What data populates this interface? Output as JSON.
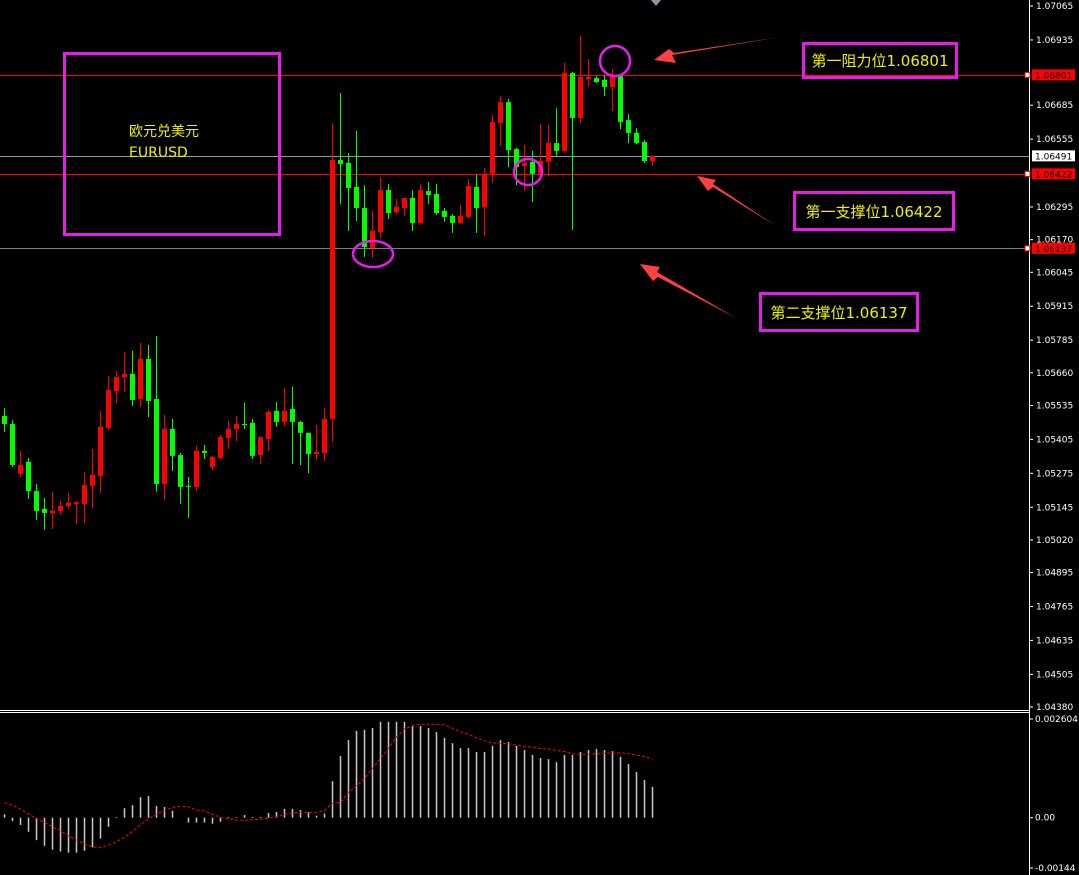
{
  "chart_data": {
    "type": "candlestick",
    "symbol_label": "欧元兑美元",
    "symbol": "EURUSD",
    "price_axis": {
      "range": [
        1.0438,
        1.07065
      ],
      "ticks": [
        "1.07065",
        "1.06935",
        "1.06685",
        "1.06555",
        "1.06295",
        "1.06170",
        "1.06045",
        "1.05915",
        "1.05785",
        "1.05660",
        "1.05535",
        "1.05405",
        "1.05275",
        "1.05145",
        "1.05020",
        "1.04895",
        "1.04765",
        "1.04635",
        "1.04505",
        "1.04380"
      ]
    },
    "bull_color": "#ff0000",
    "bear_color": "#00ff00",
    "candles_ohlc": [
      [
        1.05495,
        1.05525,
        1.05433,
        1.05464
      ],
      [
        1.05464,
        1.05479,
        1.05299,
        1.05307
      ],
      [
        1.05273,
        1.05361,
        1.05261,
        1.05307
      ],
      [
        1.05319,
        1.05334,
        1.05177,
        1.05207
      ],
      [
        1.05207,
        1.05234,
        1.05096,
        1.05131
      ],
      [
        1.05139,
        1.05181,
        1.05058,
        1.05123
      ],
      [
        1.05123,
        1.05204,
        1.05062,
        1.05131
      ],
      [
        1.05131,
        1.05169,
        1.05116,
        1.0515
      ],
      [
        1.0515,
        1.052,
        1.05139,
        1.05162
      ],
      [
        1.05158,
        1.05165,
        1.05081,
        1.05165
      ],
      [
        1.05158,
        1.0528,
        1.05085,
        1.0523
      ],
      [
        1.05227,
        1.05368,
        1.05142,
        1.05269
      ],
      [
        1.05265,
        1.05514,
        1.052,
        1.05453
      ],
      [
        1.05449,
        1.05648,
        1.05441,
        1.05594
      ],
      [
        1.0559,
        1.05667,
        1.05545,
        1.05644
      ],
      [
        1.05644,
        1.0574,
        1.05587,
        1.05656
      ],
      [
        1.05656,
        1.05744,
        1.05533,
        1.05556
      ],
      [
        1.0556,
        1.05774,
        1.05529,
        1.05713
      ],
      [
        1.05713,
        1.05767,
        1.05491,
        1.05552
      ],
      [
        1.0556,
        1.05801,
        1.05204,
        1.05234
      ],
      [
        1.05234,
        1.05499,
        1.05173,
        1.05445
      ],
      [
        1.05445,
        1.05483,
        1.05284,
        1.05342
      ],
      [
        1.05345,
        1.05353,
        1.05158,
        1.05223
      ],
      [
        1.05227,
        1.05261,
        1.05104,
        1.05223
      ],
      [
        1.05223,
        1.0538,
        1.05207,
        1.05361
      ],
      [
        1.05361,
        1.05384,
        1.0533,
        1.05353
      ],
      [
        1.05299,
        1.05342,
        1.05288,
        1.05338
      ],
      [
        1.05334,
        1.05422,
        1.0533,
        1.05414
      ],
      [
        1.0541,
        1.05476,
        1.05368,
        1.05445
      ],
      [
        1.05445,
        1.05495,
        1.05399,
        1.05464
      ],
      [
        1.05464,
        1.05545,
        1.05445,
        1.0546
      ],
      [
        1.05468,
        1.05483,
        1.0533,
        1.05342
      ],
      [
        1.05345,
        1.05414,
        1.05311,
        1.05414
      ],
      [
        1.05407,
        1.05518,
        1.05361,
        1.0551
      ],
      [
        1.05514,
        1.05548,
        1.05453,
        1.05472
      ],
      [
        1.05472,
        1.05602,
        1.05456,
        1.05514
      ],
      [
        1.05522,
        1.05606,
        1.05311,
        1.05472
      ],
      [
        1.05472,
        1.05476,
        1.05307,
        1.0543
      ],
      [
        1.0543,
        1.0543,
        1.05276,
        1.05349
      ],
      [
        1.05349,
        1.0546,
        1.05326,
        1.05357
      ],
      [
        1.05353,
        1.05525,
        1.05322,
        1.05483
      ],
      [
        1.05483,
        1.06617,
        1.05395,
        1.06475
      ],
      [
        1.06475,
        1.06732,
        1.06307,
        1.0646
      ],
      [
        1.06464,
        1.06502,
        1.06203,
        1.06368
      ],
      [
        1.06372,
        1.06586,
        1.06242,
        1.06291
      ],
      [
        1.06291,
        1.06379,
        1.06104,
        1.06142
      ],
      [
        1.06138,
        1.0628,
        1.061,
        1.06203
      ],
      [
        1.06199,
        1.0641,
        1.06176,
        1.0636
      ],
      [
        1.0636,
        1.06383,
        1.06249,
        1.06272
      ],
      [
        1.06276,
        1.06326,
        1.06268,
        1.06295
      ],
      [
        1.06291,
        1.0633,
        1.06261,
        1.0633
      ],
      [
        1.0633,
        1.0636,
        1.06203,
        1.06234
      ],
      [
        1.06234,
        1.06383,
        1.06226,
        1.0636
      ],
      [
        1.06356,
        1.06391,
        1.06307,
        1.06341
      ],
      [
        1.06345,
        1.06383,
        1.06265,
        1.06272
      ],
      [
        1.0628,
        1.06291,
        1.06238,
        1.06257
      ],
      [
        1.06261,
        1.06268,
        1.06196,
        1.06234
      ],
      [
        1.06234,
        1.06303,
        1.0623,
        1.06261
      ],
      [
        1.06257,
        1.06402,
        1.06253,
        1.06376
      ],
      [
        1.06372,
        1.06418,
        1.06196,
        1.06291
      ],
      [
        1.06295,
        1.06445,
        1.06184,
        1.06422
      ],
      [
        1.06422,
        1.06648,
        1.06387,
        1.06621
      ],
      [
        1.06617,
        1.0672,
        1.06529,
        1.06697
      ],
      [
        1.06697,
        1.06709,
        1.06448,
        1.06513
      ],
      [
        1.06517,
        1.06521,
        1.06379,
        1.06448
      ],
      [
        1.06452,
        1.06533,
        1.06356,
        1.06464
      ],
      [
        1.06468,
        1.0651,
        1.06314,
        1.06422
      ],
      [
        1.06422,
        1.06613,
        1.06418,
        1.06471
      ],
      [
        1.06468,
        1.06609,
        1.06414,
        1.0654
      ],
      [
        1.0654,
        1.06674,
        1.06491,
        1.0651
      ],
      [
        1.0651,
        1.06847,
        1.06502,
        1.06808
      ],
      [
        1.06808,
        1.06812,
        1.06207,
        1.06636
      ],
      [
        1.06636,
        1.0695,
        1.06617,
        1.06793
      ],
      [
        1.06785,
        1.06862,
        1.06755,
        1.06793
      ],
      [
        1.06789,
        1.06797,
        1.0677,
        1.06774
      ],
      [
        1.06782,
        1.06801,
        1.0672,
        1.06755
      ],
      [
        1.06755,
        1.06824,
        1.06663,
        1.06797
      ],
      [
        1.06797,
        1.06797,
        1.06594,
        1.06621
      ],
      [
        1.06628,
        1.06651,
        1.0654,
        1.06579
      ],
      [
        1.06579,
        1.06598,
        1.06536,
        1.0654
      ],
      [
        1.06544,
        1.06552,
        1.06464,
        1.06471
      ],
      [
        1.06471,
        1.06491,
        1.06452,
        1.06491
      ]
    ],
    "levels": [
      {
        "price": "1.06801",
        "color": "#ff0000",
        "badge_bg": "#ff0000",
        "badge_fg": "#000000"
      },
      {
        "price": "1.06491",
        "color": "#8a9aa8",
        "badge_bg": "#ffffff",
        "badge_fg": "#000000"
      },
      {
        "price": "1.06422",
        "color": "#ff0000",
        "badge_bg": "#ff0000",
        "badge_fg": "#000000"
      },
      {
        "price": "1.06137",
        "color": "#7a8088",
        "badge_bg": "#ff0000",
        "badge_fg": "#000000"
      }
    ],
    "indicator": {
      "range": [
        -0.00144,
        0.002604
      ],
      "ticks": [
        "0.002604",
        "0.00",
        "-0.00144"
      ],
      "histogram_color": "#c8c8c8",
      "signal_color": "#ff0000",
      "histogram": [
        9e-05,
        -9e-05,
        -0.00019,
        -0.00037,
        -0.00059,
        -0.00074,
        -0.00084,
        -0.00089,
        -0.00092,
        -0.00092,
        -0.00087,
        -0.00078,
        -0.00055,
        -0.00024,
        2e-05,
        0.00025,
        0.00033,
        0.00054,
        0.00057,
        0.00031,
        0.00028,
        0.00018,
        0.0,
        -0.00013,
        -0.00013,
        -0.00013,
        -0.00016,
        -0.00011,
        2e-05,
        2e-05,
        7e-05,
        2e-05,
        2e-05,
        0.00012,
        0.00015,
        0.00023,
        0.00023,
        0.0002,
        0.00014,
        5e-05,
        0.00011,
        0.00096,
        0.00162,
        0.00204,
        0.00228,
        0.00231,
        0.00236,
        0.00252,
        0.00252,
        0.00252,
        0.00252,
        0.00241,
        0.00241,
        0.00236,
        0.00225,
        0.0021,
        0.00196,
        0.00183,
        0.00183,
        0.00173,
        0.00173,
        0.00189,
        0.00204,
        0.00199,
        0.00189,
        0.00178,
        0.00165,
        0.00157,
        0.00154,
        0.00146,
        0.00165,
        0.00165,
        0.00173,
        0.00178,
        0.00181,
        0.00178,
        0.00175,
        0.0016,
        0.00141,
        0.0012,
        0.00099,
        0.00081
      ],
      "signal": [
        0.0004,
        0.00033,
        0.00023,
        0.0001,
        -2e-05,
        -0.00012,
        -0.00024,
        -0.00035,
        -0.00047,
        -0.00059,
        -0.00069,
        -0.00077,
        -0.00079,
        -0.00072,
        -0.00063,
        -0.00051,
        -0.00037,
        -0.00018,
        -2e-05,
        9e-05,
        0.0002,
        0.00027,
        0.0003,
        0.00029,
        0.0002,
        0.00018,
        9e-05,
        1e-05,
        -3e-05,
        -6e-05,
        -7e-05,
        -5e-05,
        -4e-05,
        -1e-05,
        2e-05,
        9e-05,
        0.00013,
        0.00014,
        0.00014,
        0.00014,
        0.00019,
        0.00038,
        0.0004,
        0.00067,
        0.00084,
        0.00103,
        0.0013,
        0.00156,
        0.00182,
        0.00213,
        0.00233,
        0.00242,
        0.00246,
        0.00246,
        0.00246,
        0.00244,
        0.00235,
        0.00226,
        0.00219,
        0.0021,
        0.00202,
        0.00197,
        0.00196,
        0.00194,
        0.00191,
        0.00188,
        0.00185,
        0.00182,
        0.00181,
        0.00177,
        0.00174,
        0.00168,
        0.00167,
        0.00167,
        0.00168,
        0.00169,
        0.0017,
        0.00171,
        0.00168,
        0.00165,
        0.00161,
        0.00154
      ]
    }
  },
  "annotations": {
    "resistance_1": "第一阻力位1.06801",
    "support_1": "第一支撑位1.06422",
    "support_2": "第二支撑位1.06137",
    "annotation_color": "#e81ee8",
    "text_color": "#f0f000",
    "arrow_color": "#ff4040"
  }
}
